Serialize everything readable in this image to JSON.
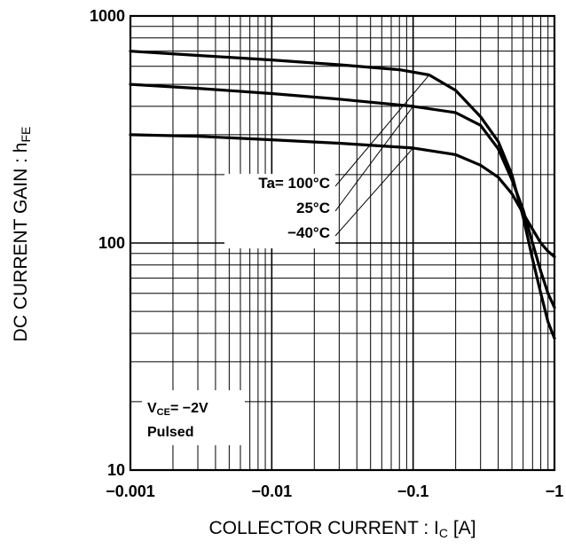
{
  "chart_data": {
    "type": "line",
    "xlabel": "COLLECTOR CURRENT : I",
    "xlabel_sub": "C",
    "xlabel_suffix": " [A]",
    "ylabel": "DC CURRENT GAIN : h",
    "ylabel_sub": "FE",
    "x_scale": "log",
    "y_scale": "log",
    "xlim": [
      0.001,
      1
    ],
    "ylim": [
      10,
      1000
    ],
    "grid": true,
    "x_ticks": [
      {
        "value": 0.001,
        "label": "−0.001"
      },
      {
        "value": 0.01,
        "label": "−0.01"
      },
      {
        "value": 0.1,
        "label": "−0.1"
      },
      {
        "value": 1,
        "label": "−1"
      }
    ],
    "y_ticks": [
      {
        "value": 10,
        "label": "10"
      },
      {
        "value": 100,
        "label": "100"
      },
      {
        "value": 1000,
        "label": "1000"
      }
    ],
    "legend": {
      "title_prefix": "Ta= ",
      "entries": [
        "100°C",
        "25°C",
        "−40°C"
      ]
    },
    "note": {
      "line1_main": "V",
      "line1_sub": "CE",
      "line1_rest": "= −2V",
      "line2": "Pulsed"
    },
    "series": [
      {
        "name": "100°C",
        "x": [
          0.001,
          0.003,
          0.01,
          0.03,
          0.08,
          0.13,
          0.2,
          0.3,
          0.4,
          0.5,
          0.6,
          0.7,
          0.8,
          0.9,
          1.0
        ],
        "y": [
          700,
          670,
          640,
          610,
          580,
          550,
          470,
          360,
          280,
          200,
          130,
          85,
          60,
          45,
          38
        ]
      },
      {
        "name": "25°C",
        "x": [
          0.001,
          0.003,
          0.01,
          0.03,
          0.1,
          0.2,
          0.3,
          0.4,
          0.5,
          0.6,
          0.7,
          0.8,
          0.9,
          1.0
        ],
        "y": [
          500,
          480,
          455,
          430,
          400,
          375,
          330,
          260,
          190,
          140,
          100,
          75,
          60,
          52
        ]
      },
      {
        "name": "−40°C",
        "x": [
          0.001,
          0.003,
          0.01,
          0.03,
          0.1,
          0.2,
          0.3,
          0.4,
          0.5,
          0.6,
          0.7,
          0.8,
          0.9,
          1.0
        ],
        "y": [
          300,
          295,
          285,
          275,
          262,
          245,
          220,
          195,
          165,
          135,
          115,
          100,
          92,
          87
        ]
      }
    ]
  }
}
